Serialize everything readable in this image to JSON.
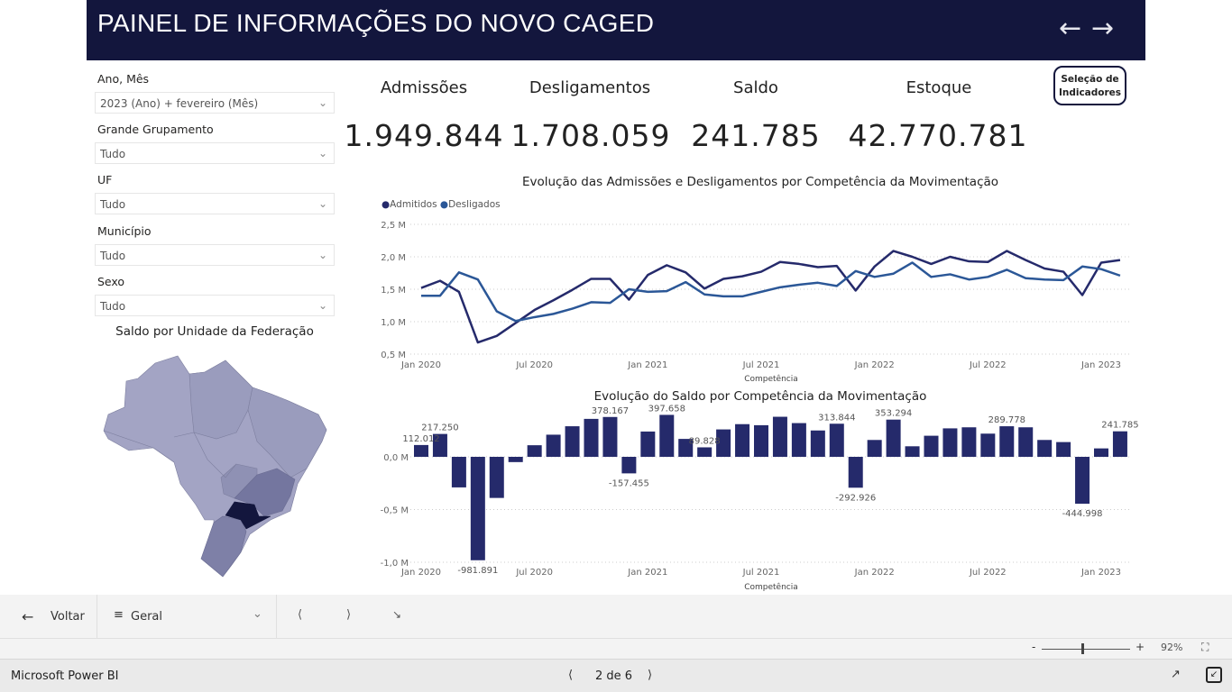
{
  "header": {
    "title": "PAINEL DE INFORMAÇÕES DO NOVO CAGED",
    "back_icon": "arrow-left",
    "forward_icon": "arrow-right"
  },
  "filters": [
    {
      "label": "Ano, Mês",
      "value": "2023 (Ano) + fevereiro (Mês)"
    },
    {
      "label": "Grande Grupamento",
      "value": "Tudo"
    },
    {
      "label": "UF",
      "value": "Tudo"
    },
    {
      "label": "Município",
      "value": "Tudo"
    },
    {
      "label": "Sexo",
      "value": "Tudo"
    }
  ],
  "map": {
    "title": "Saldo por Unidade da Federação",
    "colors": {
      "low": "#a3a4c4",
      "mid": "#9698ba",
      "high": "#74769f",
      "max": "#13163d"
    }
  },
  "kpis": [
    {
      "label": "Admissões",
      "value": "1.949.844"
    },
    {
      "label": "Desligamentos",
      "value": "1.708.059"
    },
    {
      "label": "Saldo",
      "value": "241.785"
    },
    {
      "label": "Estoque",
      "value": "42.770.781"
    }
  ],
  "selection_button": {
    "line1": "Seleção de",
    "line2": "Indicadores"
  },
  "chart_data": [
    {
      "type": "line",
      "title": "Evolução das Admissões e Desligamentos por Competência da Movimentação",
      "xlabel": "Competência",
      "ylabel": "",
      "ylim": [
        0.5,
        2.5
      ],
      "yticks": [
        "0,5 M",
        "1,0 M",
        "1,5 M",
        "2,0 M",
        "2,5 M"
      ],
      "ytick_values": [
        0.5,
        1.0,
        1.5,
        2.0,
        2.5
      ],
      "xticks": [
        "Jan 2020",
        "Jul 2020",
        "Jan 2021",
        "Jul 2021",
        "Jan 2022",
        "Jul 2022",
        "Jan 2023"
      ],
      "xtick_index": [
        0,
        6,
        12,
        18,
        24,
        30,
        36
      ],
      "legend_position": "top-left",
      "series": [
        {
          "name": "Admitidos",
          "color": "#252a6b",
          "values": [
            1.52,
            1.63,
            1.46,
            0.68,
            0.78,
            0.98,
            1.18,
            1.33,
            1.49,
            1.66,
            1.66,
            1.34,
            1.72,
            1.87,
            1.76,
            1.51,
            1.66,
            1.7,
            1.77,
            1.92,
            1.89,
            1.84,
            1.86,
            1.48,
            1.85,
            2.09,
            2.0,
            1.89,
            2.0,
            1.93,
            1.92,
            2.09,
            1.95,
            1.82,
            1.77,
            1.41,
            1.91,
            1.95
          ]
        },
        {
          "name": "Desligados",
          "color": "#2b5797",
          "values": [
            1.4,
            1.4,
            1.76,
            1.65,
            1.16,
            1.01,
            1.07,
            1.12,
            1.2,
            1.3,
            1.29,
            1.5,
            1.46,
            1.47,
            1.61,
            1.42,
            1.39,
            1.39,
            1.46,
            1.53,
            1.57,
            1.6,
            1.55,
            1.78,
            1.69,
            1.74,
            1.91,
            1.69,
            1.73,
            1.65,
            1.69,
            1.8,
            1.67,
            1.65,
            1.64,
            1.85,
            1.81,
            1.71
          ]
        }
      ]
    },
    {
      "type": "bar",
      "title": "Evolução do Saldo por Competência da Movimentação",
      "xlabel": "Competência",
      "ylabel": "",
      "ylim": [
        -1.0,
        0.4
      ],
      "color": "#252a6b",
      "yticks": [
        "-1,0 M",
        "-0,5 M",
        "0,0 M"
      ],
      "ytick_values": [
        -1.0,
        -0.5,
        0.0
      ],
      "xticks": [
        "Jan 2020",
        "Jul 2020",
        "Jan 2021",
        "Jul 2021",
        "Jan 2022",
        "Jul 2022",
        "Jan 2023"
      ],
      "xtick_index": [
        0,
        6,
        12,
        18,
        24,
        30,
        36
      ],
      "values": [
        0.112,
        0.217,
        -0.29,
        -0.981,
        -0.39,
        -0.05,
        0.11,
        0.21,
        0.29,
        0.36,
        0.378,
        -0.157,
        0.24,
        0.398,
        0.17,
        0.09,
        0.26,
        0.31,
        0.3,
        0.38,
        0.32,
        0.25,
        0.314,
        -0.293,
        0.16,
        0.353,
        0.1,
        0.2,
        0.27,
        0.28,
        0.22,
        0.29,
        0.28,
        0.16,
        0.14,
        -0.445,
        0.08,
        0.242
      ],
      "data_labels": [
        {
          "index": 0,
          "text": "112.012"
        },
        {
          "index": 1,
          "text": "217.250"
        },
        {
          "index": 3,
          "text": "-981.891"
        },
        {
          "index": 10,
          "text": "378.167"
        },
        {
          "index": 11,
          "text": "-157.455"
        },
        {
          "index": 13,
          "text": "397.658"
        },
        {
          "index": 15,
          "text": "89.828"
        },
        {
          "index": 22,
          "text": "313.844"
        },
        {
          "index": 23,
          "text": "-292.926"
        },
        {
          "index": 25,
          "text": "353.294"
        },
        {
          "index": 31,
          "text": "289.778"
        },
        {
          "index": 35,
          "text": "-444.998"
        },
        {
          "index": 37,
          "text": "241.785"
        }
      ]
    }
  ],
  "bottom": {
    "back_label": "Voltar",
    "page_select": "Geral",
    "zoom": "92%",
    "zoom_minus": "-",
    "zoom_plus": "+",
    "app": "Microsoft Power BI",
    "page_indicator": "2 de 6"
  }
}
